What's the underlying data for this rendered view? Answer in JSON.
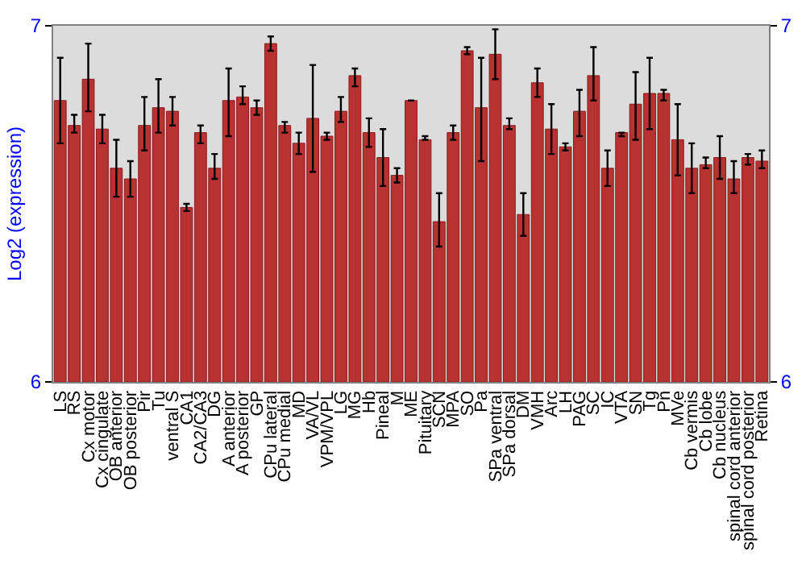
{
  "chart_data": {
    "type": "bar",
    "ylabel": "Log2 (expression)",
    "categories": [
      "LS",
      "RS",
      "Cx motor",
      "Cx cingulate",
      "OB anterior",
      "OB posterior",
      "Pir",
      "Tu",
      "ventral S",
      "CA1",
      "CA2/CA3",
      "DG",
      "A anterior",
      "A posterior",
      "GP",
      "CPu lateral",
      "CPu medial",
      "MD",
      "VA/VL",
      "VPM/VPL",
      "LG",
      "MG",
      "Hb",
      "Pineal",
      "M",
      "ME",
      "Pituitary",
      "SCN",
      "MPA",
      "SO",
      "Pa",
      "SPa ventral",
      "SPa dorsal",
      "DM",
      "VMH",
      "Arc",
      "LH",
      "PAG",
      "SC",
      "IC",
      "VTA",
      "SN",
      "Tg",
      "Pn",
      "MVe",
      "Cb vermis",
      "Cb lobe",
      "Cb nucleus",
      "spinal cord anterior",
      "spinal cord posterior",
      "Retina"
    ],
    "series": [
      {
        "color": "#b83232",
        "values": [
          6.79,
          6.72,
          6.85,
          6.71,
          6.6,
          6.57,
          6.72,
          6.77,
          6.76,
          6.49,
          6.7,
          6.6,
          6.79,
          6.8,
          6.77,
          6.95,
          6.72,
          6.67,
          6.74,
          6.69,
          6.76,
          6.86,
          6.7,
          6.63,
          6.58,
          6.79,
          6.68,
          6.45,
          6.7,
          6.93,
          6.77,
          6.92,
          6.72,
          6.47,
          6.84,
          6.71,
          6.66,
          6.76,
          6.86,
          6.6,
          6.7,
          6.78,
          6.81,
          6.81,
          6.68,
          6.6,
          6.61,
          6.63,
          6.57,
          6.63,
          6.62
        ],
        "errors": [
          [
            6.67,
            6.91
          ],
          [
            6.7,
            6.75
          ],
          [
            6.76,
            6.95
          ],
          [
            6.67,
            6.75
          ],
          [
            6.52,
            6.68
          ],
          [
            6.52,
            6.62
          ],
          [
            6.65,
            6.8
          ],
          [
            6.7,
            6.85
          ],
          [
            6.72,
            6.8
          ],
          [
            6.48,
            6.5
          ],
          [
            6.67,
            6.72
          ],
          [
            6.57,
            6.64
          ],
          [
            6.69,
            6.88
          ],
          [
            6.78,
            6.83
          ],
          [
            6.75,
            6.79
          ],
          [
            6.93,
            6.97
          ],
          [
            6.7,
            6.73
          ],
          [
            6.64,
            6.7
          ],
          [
            6.59,
            6.89
          ],
          [
            6.68,
            6.7
          ],
          [
            6.73,
            6.8
          ],
          [
            6.83,
            6.88
          ],
          [
            6.66,
            6.74
          ],
          [
            6.55,
            6.71
          ],
          [
            6.56,
            6.6
          ],
          null,
          [
            6.68,
            6.69
          ],
          [
            6.38,
            6.53
          ],
          [
            6.68,
            6.72
          ],
          [
            6.92,
            6.94
          ],
          [
            6.62,
            6.91
          ],
          [
            6.85,
            6.99
          ],
          [
            6.71,
            6.74
          ],
          [
            6.41,
            6.53
          ],
          [
            6.8,
            6.88
          ],
          [
            6.64,
            6.78
          ],
          [
            6.65,
            6.67
          ],
          [
            6.69,
            6.82
          ],
          [
            6.79,
            6.94
          ],
          [
            6.55,
            6.65
          ],
          [
            6.69,
            6.7
          ],
          [
            6.68,
            6.87
          ],
          [
            6.71,
            6.91
          ],
          [
            6.79,
            6.82
          ],
          [
            6.58,
            6.78
          ],
          [
            6.53,
            6.67
          ],
          [
            6.6,
            6.63
          ],
          [
            6.57,
            6.69
          ],
          [
            6.53,
            6.62
          ],
          [
            6.61,
            6.64
          ],
          [
            6.6,
            6.65
          ]
        ]
      }
    ],
    "ylim": [
      6,
      7
    ],
    "yticks": [
      6,
      7
    ],
    "y2lim": [
      6,
      7
    ],
    "y2ticks": [
      6,
      7
    ],
    "grid": false,
    "legend": false
  }
}
